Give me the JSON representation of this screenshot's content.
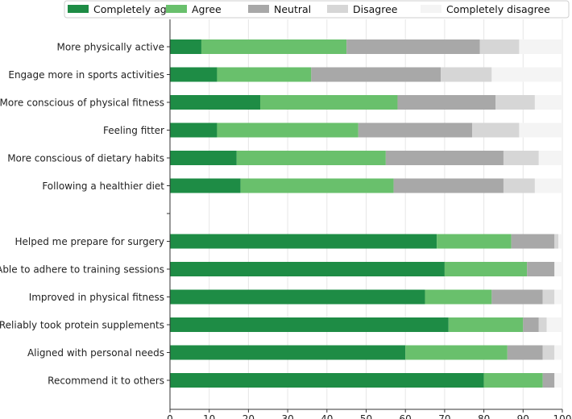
{
  "chart_data": {
    "type": "bar",
    "orientation": "horizontal",
    "stacked": true,
    "xlim": [
      0,
      100
    ],
    "xticks": [
      0,
      10,
      20,
      30,
      40,
      50,
      60,
      70,
      80,
      90,
      100
    ],
    "grid": "vertical",
    "legend_position": "top",
    "categories": [
      "More physically active",
      "Engage more in sports activities",
      "More conscious of physical fitness",
      "Feeling fitter",
      "More conscious of dietary habits",
      "Following a healthier diet",
      "",
      "Helped me prepare for surgery",
      "Able to adhere to training sessions",
      "Improved in physical fitness",
      "Reliably took protein supplements",
      "Aligned with personal needs",
      "Recommend it to others"
    ],
    "series": [
      {
        "name": "Completely agree",
        "color": "#1e8c45",
        "values": [
          8,
          12,
          23,
          12,
          17,
          18,
          null,
          68,
          70,
          65,
          71,
          60,
          80
        ]
      },
      {
        "name": "Agree",
        "color": "#69c06c",
        "values": [
          37,
          24,
          35,
          36,
          38,
          39,
          null,
          19,
          21,
          17,
          19,
          26,
          15
        ]
      },
      {
        "name": "Neutral",
        "color": "#a8a8a8",
        "values": [
          34,
          33,
          25,
          29,
          30,
          28,
          null,
          11,
          7,
          13,
          4,
          9,
          3
        ]
      },
      {
        "name": "Disagree",
        "color": "#d6d6d6",
        "values": [
          10,
          13,
          10,
          12,
          9,
          8,
          null,
          1,
          0,
          3,
          2,
          3,
          0
        ]
      },
      {
        "name": "Completely disagree",
        "color": "#f4f4f4",
        "values": [
          11,
          18,
          7,
          11,
          6,
          7,
          null,
          1,
          2,
          2,
          4,
          2,
          2
        ]
      }
    ]
  }
}
